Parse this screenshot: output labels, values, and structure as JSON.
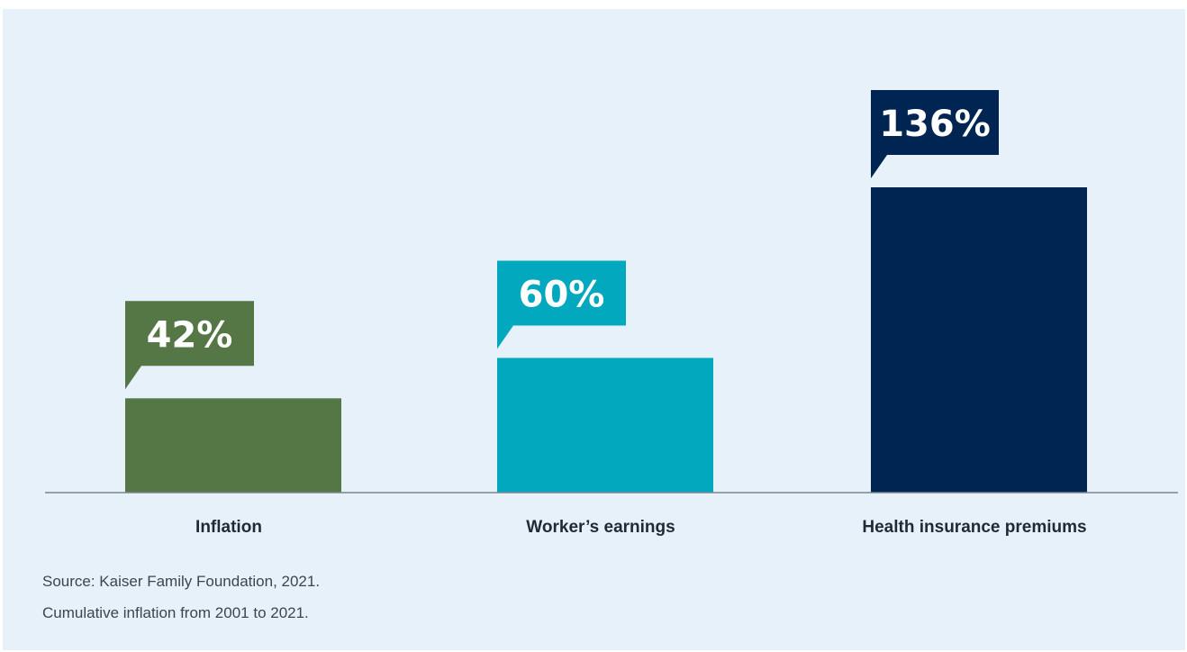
{
  "chart_data": {
    "type": "bar",
    "categories": [
      "Inflation",
      "Worker’s earnings",
      "Health insurance premiums"
    ],
    "values": [
      42,
      60,
      136
    ],
    "value_labels": [
      "42%",
      "60%",
      "136%"
    ],
    "unit": "%",
    "title": "",
    "xlabel": "",
    "ylabel": "",
    "ylim": [
      0,
      136
    ],
    "grid": false,
    "legend": "none",
    "colors": [
      "#547745",
      "#02a9be",
      "#012553"
    ],
    "label_color": "#ffffff"
  },
  "footnotes": {
    "source": "Source: Kaiser Family Foundation, 2021.",
    "note": "Cumulative inflation from 2001 to 2021."
  }
}
